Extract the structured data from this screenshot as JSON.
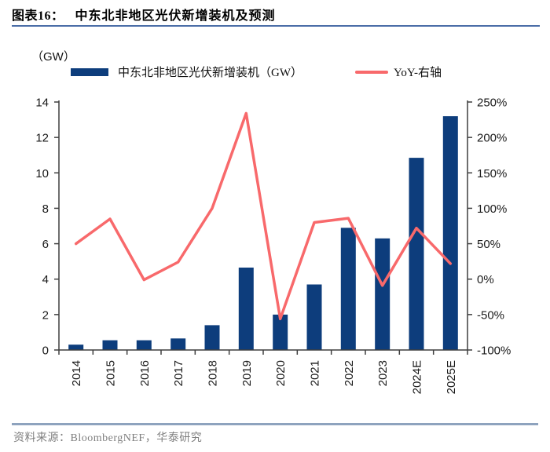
{
  "header": {
    "label": "图表16：",
    "title": "中东北非地区光伏新增装机及预测"
  },
  "axis_unit_label": "（GW）",
  "legend": {
    "bars": "中东北非地区光伏新增装机（GW）",
    "line": "YoY-右轴"
  },
  "footer": {
    "source": "资料来源：BloombergNEF，华泰研究"
  },
  "colors": {
    "bar": "#0d3d7c",
    "line": "#f8696b",
    "axis": "#3f3f3f",
    "tick_text": "#1a1a1a",
    "title_underline": "#4a6da7",
    "footer_divider": "#8ea3be",
    "footer_text": "#7f7f7f"
  },
  "chart_data": {
    "type": "bar+line",
    "title": "中东北非地区光伏新增装机及预测",
    "categories": [
      "2014",
      "2015",
      "2016",
      "2017",
      "2018",
      "2019",
      "2020",
      "2021",
      "2022",
      "2023",
      "2024E",
      "2025E"
    ],
    "series": [
      {
        "name": "中东北非地区光伏新增装机（GW）",
        "type": "bar",
        "axis": "left",
        "values": [
          0.3,
          0.55,
          0.55,
          0.65,
          1.4,
          4.65,
          2.0,
          3.7,
          6.9,
          6.3,
          10.85,
          13.2
        ]
      },
      {
        "name": "YoY-右轴",
        "type": "line",
        "axis": "right",
        "values": [
          50,
          85,
          -1,
          24,
          100,
          234,
          -56,
          80,
          86,
          -9,
          72,
          22
        ]
      }
    ],
    "left_axis": {
      "unit": "（GW）",
      "range": [
        0,
        14
      ],
      "ticks": [
        "0",
        "2",
        "4",
        "6",
        "8",
        "10",
        "12",
        "14"
      ]
    },
    "right_axis": {
      "unit": "%",
      "range": [
        -100,
        250
      ],
      "ticks": [
        "-100%",
        "-50%",
        "0%",
        "50%",
        "100%",
        "150%",
        "200%",
        "250%"
      ]
    },
    "grid": false,
    "legend_position": "top"
  }
}
